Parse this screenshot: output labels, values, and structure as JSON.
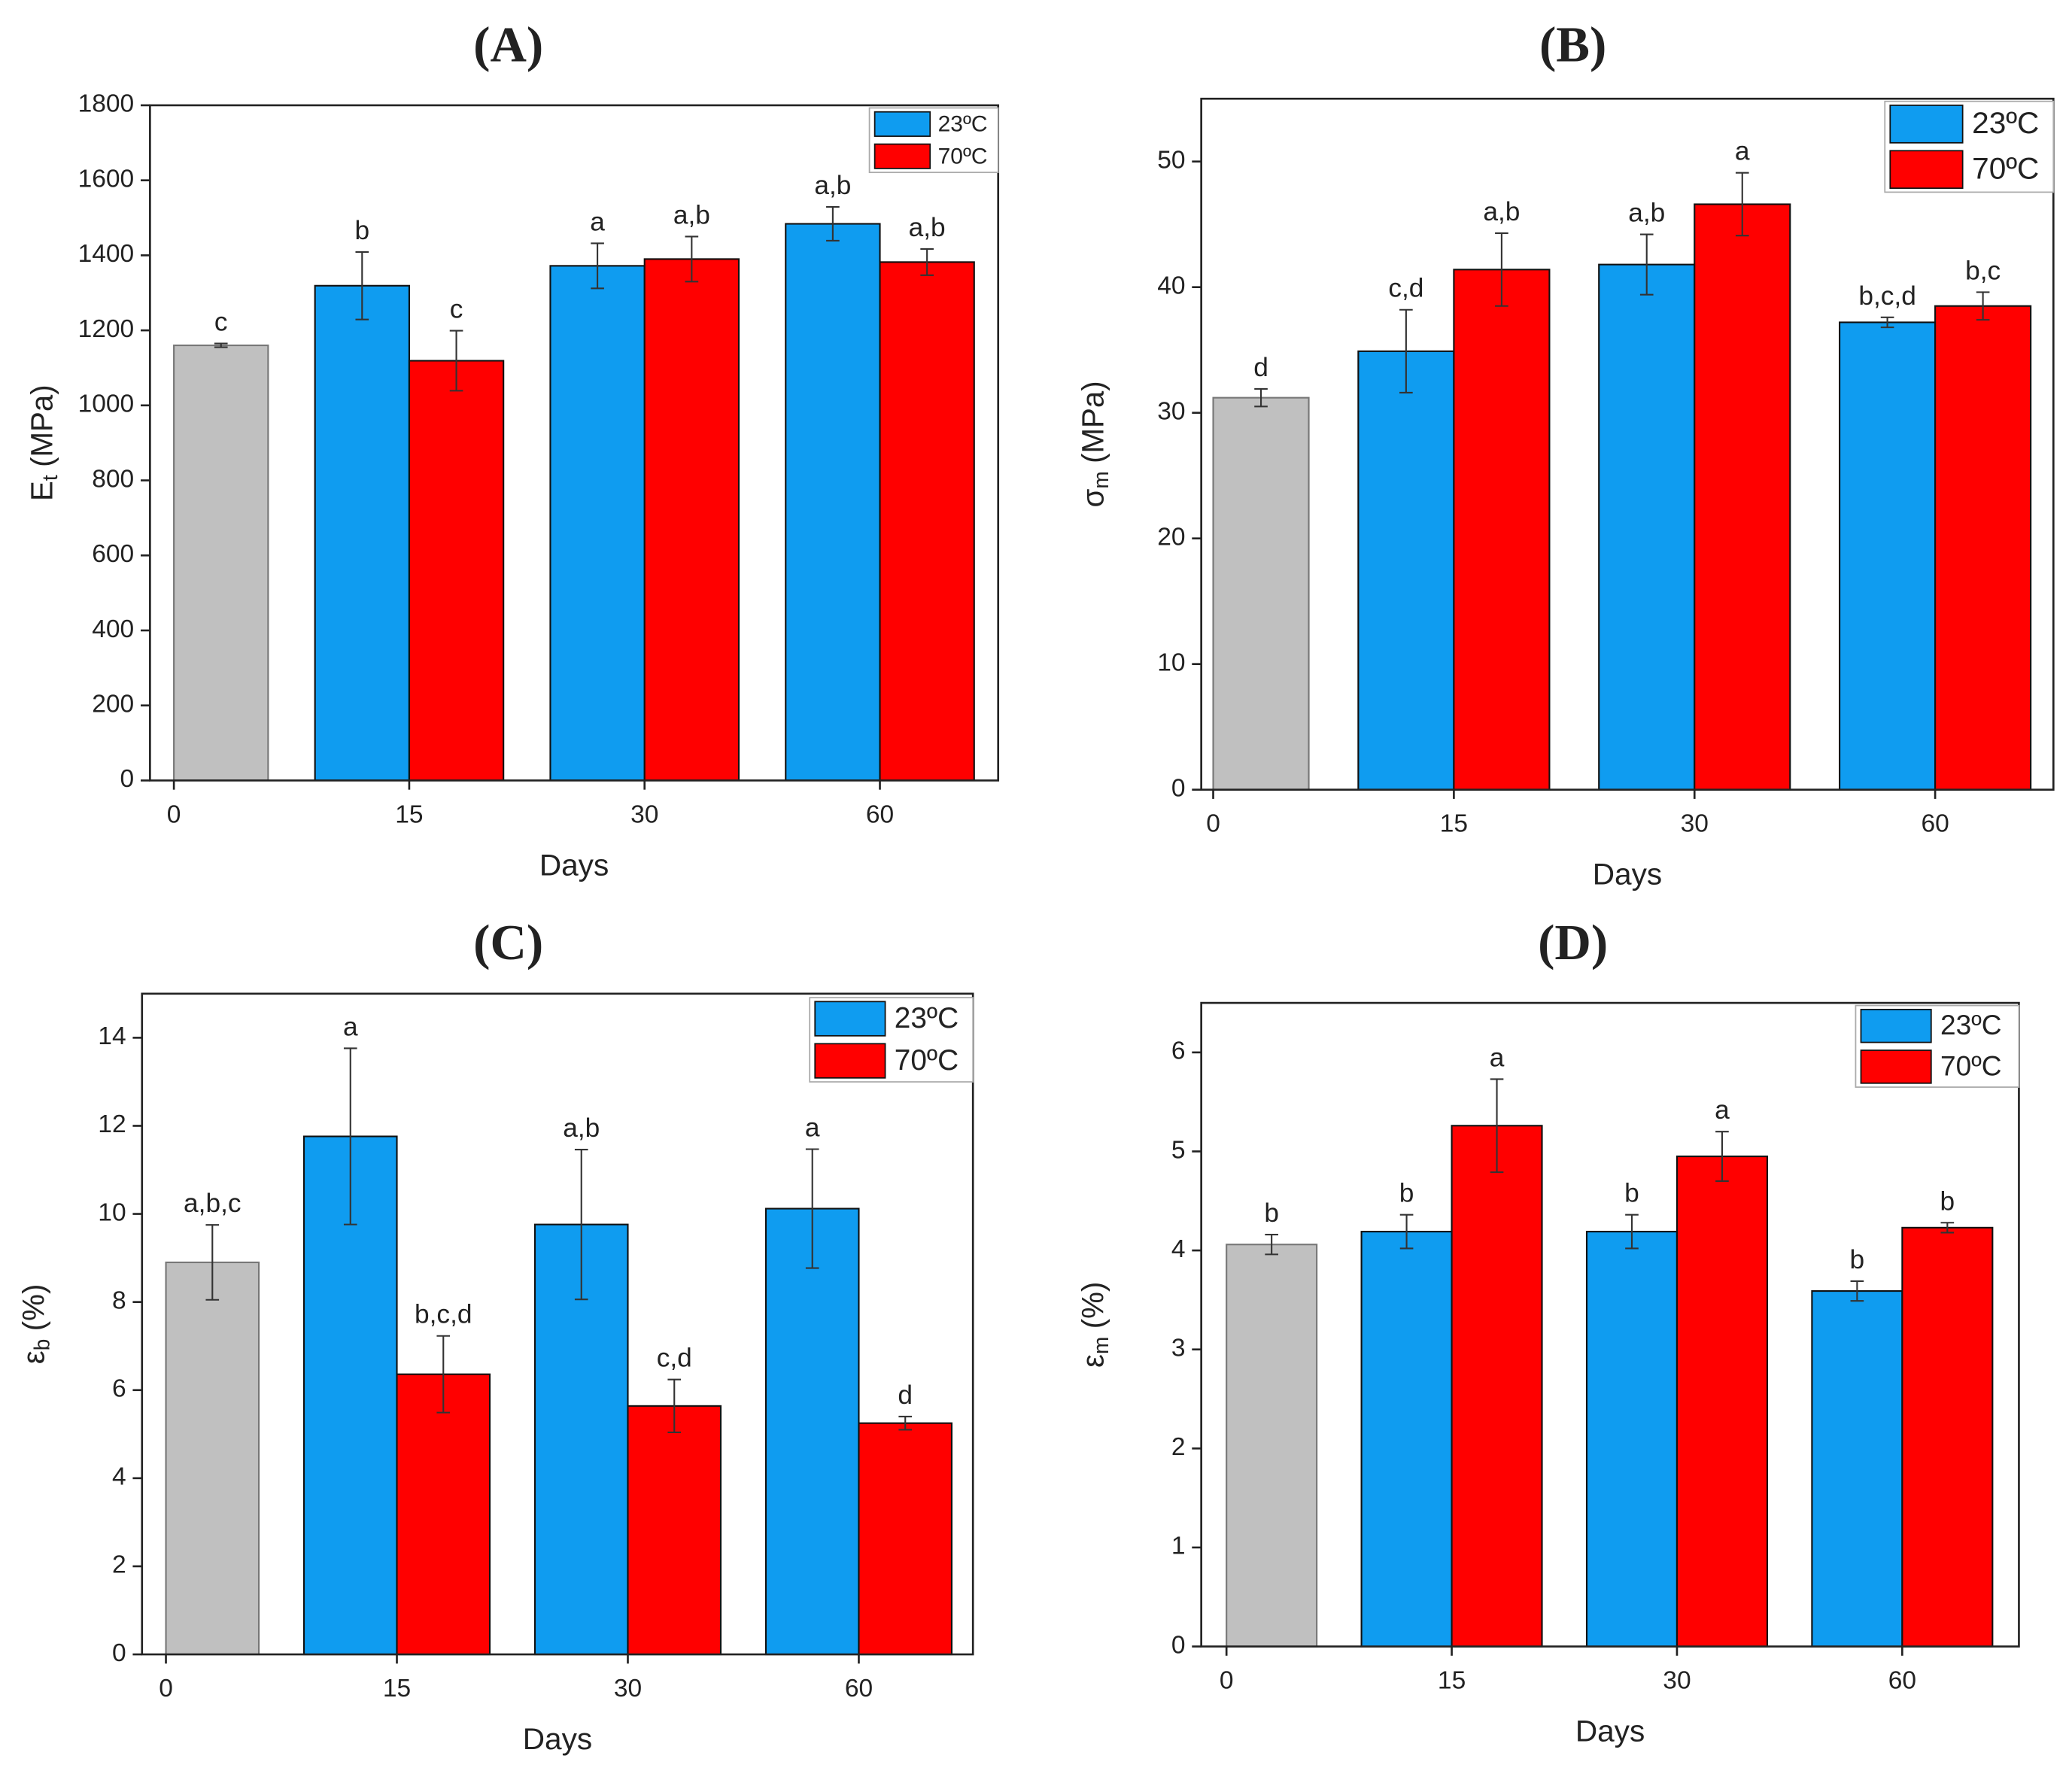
{
  "chart_data": [
    {
      "type": "bar",
      "title": "(A)",
      "xlabel": "Days",
      "ylabel": {
        "symbol": "E",
        "sub": "t",
        "unit": "(MPa)"
      },
      "categories": [
        "0",
        "15",
        "30",
        "60"
      ],
      "ylim": [
        0,
        1800
      ],
      "yticks": [
        0,
        200,
        400,
        600,
        800,
        1000,
        1200,
        1400,
        1600,
        1800
      ],
      "control": {
        "color": "#c0c0c0",
        "value": 1160,
        "error": 5,
        "annotation": "c"
      },
      "series": [
        {
          "name": "23ºC",
          "color": "#0f9cf0",
          "values": [
            null,
            1319,
            1372,
            1484
          ],
          "errors": [
            null,
            90,
            60,
            45
          ],
          "annotations": [
            null,
            "b",
            "a",
            "a,b"
          ]
        },
        {
          "name": "70ºC",
          "color": "#ff0000",
          "values": [
            null,
            1119,
            1390,
            1382
          ],
          "errors": [
            null,
            80,
            60,
            35
          ],
          "annotations": [
            null,
            "c",
            "a,b",
            "a,b"
          ]
        }
      ]
    },
    {
      "type": "bar",
      "title": "(B)",
      "xlabel": "Days",
      "ylabel": {
        "symbol": "σ",
        "sub": "m",
        "unit": "(MPa)"
      },
      "categories": [
        "0",
        "15",
        "30",
        "60"
      ],
      "ylim": [
        0,
        55
      ],
      "yticks": [
        0,
        10,
        20,
        30,
        40,
        50
      ],
      "control": {
        "color": "#c0c0c0",
        "value": 31.2,
        "error": 0.7,
        "annotation": "d"
      },
      "series": [
        {
          "name": "23ºC",
          "color": "#0f9cf0",
          "values": [
            null,
            34.9,
            41.8,
            37.2
          ],
          "errors": [
            null,
            3.3,
            2.4,
            0.4
          ],
          "annotations": [
            null,
            "c,d",
            "a,b",
            "b,c,d"
          ]
        },
        {
          "name": "70ºC",
          "color": "#ff0000",
          "values": [
            null,
            41.4,
            46.6,
            38.5
          ],
          "errors": [
            null,
            2.9,
            2.5,
            1.1
          ],
          "annotations": [
            null,
            "a,b",
            "a",
            "b,c"
          ]
        }
      ]
    },
    {
      "type": "bar",
      "title": "(C)",
      "xlabel": "Days",
      "ylabel": {
        "symbol": "ε",
        "sub": "b",
        "unit": "(%)"
      },
      "categories": [
        "0",
        "15",
        "30",
        "60"
      ],
      "ylim": [
        0,
        15
      ],
      "yticks": [
        0,
        2,
        4,
        6,
        8,
        10,
        12,
        14
      ],
      "control": {
        "color": "#c0c0c0",
        "value": 8.9,
        "error": 0.85,
        "annotation": "a,b,c"
      },
      "series": [
        {
          "name": "23ºC",
          "color": "#0f9cf0",
          "values": [
            null,
            11.76,
            9.76,
            10.12
          ],
          "errors": [
            null,
            2.0,
            1.7,
            1.35
          ],
          "annotations": [
            null,
            "a",
            "a,b",
            "a"
          ]
        },
        {
          "name": "70ºC",
          "color": "#ff0000",
          "values": [
            null,
            6.36,
            5.64,
            5.25
          ],
          "errors": [
            null,
            0.87,
            0.6,
            0.15
          ],
          "annotations": [
            null,
            "b,c,d",
            "c,d",
            "d"
          ]
        }
      ]
    },
    {
      "type": "bar",
      "title": "(D)",
      "xlabel": "Days",
      "ylabel": {
        "symbol": "ε",
        "sub": "m",
        "unit": "(%)"
      },
      "categories": [
        "0",
        "15",
        "30",
        "60"
      ],
      "ylim": [
        0,
        6.5
      ],
      "yticks": [
        0,
        1,
        2,
        3,
        4,
        5,
        6
      ],
      "control": {
        "color": "#c0c0c0",
        "value": 4.06,
        "error": 0.1,
        "annotation": "b"
      },
      "series": [
        {
          "name": "23ºC",
          "color": "#0f9cf0",
          "values": [
            null,
            4.19,
            4.19,
            3.59
          ],
          "errors": [
            null,
            0.17,
            0.17,
            0.1
          ],
          "annotations": [
            null,
            "b",
            "b",
            "b"
          ]
        },
        {
          "name": "70ºC",
          "color": "#ff0000",
          "values": [
            null,
            5.26,
            4.95,
            4.23
          ],
          "errors": [
            null,
            0.47,
            0.25,
            0.05
          ],
          "annotations": [
            null,
            "a",
            "a",
            "b"
          ]
        }
      ]
    }
  ]
}
